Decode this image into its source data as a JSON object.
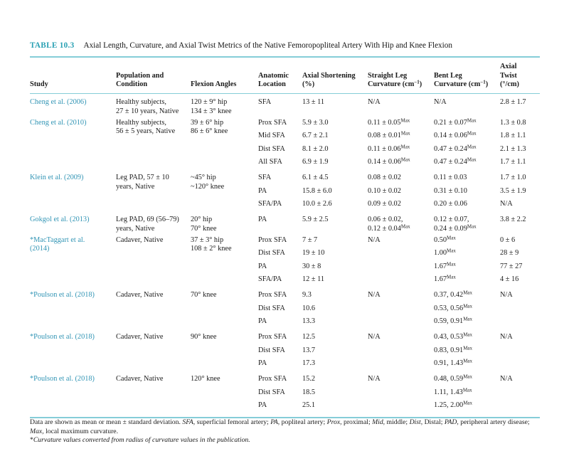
{
  "title": {
    "label": "TABLE 10.3",
    "text": "Axial Length, Curvature, and Axial Twist Metrics of the Native Femoropopliteal Artery With Hip and Knee Flexion"
  },
  "colors": {
    "accent_teal": "#28a0b3",
    "link_teal": "#3295b5",
    "rule_cyan": "#85cdd8",
    "text": "#1b1b1b"
  },
  "table": {
    "columns": [
      {
        "id": "study",
        "lines": [
          "Study"
        ]
      },
      {
        "id": "population",
        "lines": [
          "Population and",
          "Condition"
        ]
      },
      {
        "id": "flexion",
        "lines": [
          "Flexion Angles"
        ]
      },
      {
        "id": "location",
        "lines": [
          "Anatomic",
          "Location"
        ]
      },
      {
        "id": "shortening",
        "lines": [
          "Axial Shortening",
          "(%)"
        ]
      },
      {
        "id": "straight",
        "lines": [
          "Straight Leg",
          "Curvature (cm^−1^)"
        ]
      },
      {
        "id": "bent",
        "lines": [
          "Bent Leg",
          "Curvature (cm^−1^)"
        ]
      },
      {
        "id": "twist",
        "lines": [
          "Axial",
          "Twist",
          "(°/cm)"
        ]
      }
    ],
    "groups": [
      {
        "study": [
          "Cheng et al. (2006)"
        ],
        "population": [
          "Healthy subjects,",
          "27 ± 10 years, Native"
        ],
        "flexion": [
          "120 ± 9° hip",
          "134 ± 3° knee"
        ],
        "rows": [
          {
            "location": "SFA",
            "shortening": [
              "13 ± 11"
            ],
            "straight": [
              "N/A"
            ],
            "bent": [
              "N/A"
            ],
            "twist": [
              "2.8 ± 1.7"
            ]
          }
        ]
      },
      {
        "study": [
          "Cheng et al. (2010)"
        ],
        "population": [
          "Healthy subjects,",
          "56 ± 5 years, Native"
        ],
        "flexion": [
          "39 ± 6° hip",
          "86 ± 6° knee"
        ],
        "rows": [
          {
            "location": "Prox SFA",
            "shortening": [
              "5.9 ± 3.0"
            ],
            "straight": [
              "0.11 ± 0.05^Max"
            ],
            "bent": [
              "0.21 ± 0.07^Max"
            ],
            "twist": [
              "1.3 ± 0.8"
            ]
          },
          {
            "location": "Mid SFA",
            "shortening": [
              "6.7 ± 2.1"
            ],
            "straight": [
              "0.08 ± 0.01^Max"
            ],
            "bent": [
              "0.14 ± 0.06^Max"
            ],
            "twist": [
              "1.8 ± 1.1"
            ]
          },
          {
            "location": "Dist SFA",
            "shortening": [
              "8.1 ± 2.0"
            ],
            "straight": [
              "0.11 ± 0.06^Max"
            ],
            "bent": [
              "0.47 ± 0.24^Max"
            ],
            "twist": [
              "2.1 ± 1.3"
            ]
          },
          {
            "location": "All SFA",
            "shortening": [
              "6.9 ± 1.9"
            ],
            "straight": [
              "0.14 ± 0.06^Max"
            ],
            "bent": [
              "0.47 ± 0.24^Max"
            ],
            "twist": [
              "1.7 ± 1.1"
            ]
          }
        ]
      },
      {
        "study": [
          "Klein et al. (2009)"
        ],
        "population": [
          "Leg PAD, 57 ± 10",
          "years, Native"
        ],
        "flexion": [
          "~45° hip",
          "~120° knee"
        ],
        "rows": [
          {
            "location": "SFA",
            "shortening": [
              "6.1 ± 4.5"
            ],
            "straight": [
              "0.08 ± 0.02"
            ],
            "bent": [
              "0.11 ± 0.03"
            ],
            "twist": [
              "1.7 ± 1.0"
            ]
          },
          {
            "location": "PA",
            "shortening": [
              "15.8 ± 6.0"
            ],
            "straight": [
              "0.10 ± 0.02"
            ],
            "bent": [
              "0.31 ± 0.10"
            ],
            "twist": [
              "3.5 ± 1.9"
            ]
          },
          {
            "location": "SFA/PA",
            "shortening": [
              "10.0 ± 2.6"
            ],
            "straight": [
              "0.09 ± 0.02"
            ],
            "bent": [
              "0.20 ± 0.06"
            ],
            "twist": [
              "N/A"
            ]
          }
        ]
      },
      {
        "study": [
          "Gokgol et al. (2013)"
        ],
        "population": [
          "Leg PAD, 69 (56–79)",
          "years, Native"
        ],
        "flexion": [
          "20° hip",
          "70° knee"
        ],
        "rows": [
          {
            "location": "PA",
            "shortening": [
              "5.9 ± 2.5"
            ],
            "straight": [
              "0.06 ± 0.02,",
              "0.12 ± 0.04^Max"
            ],
            "bent": [
              "0.12 ± 0.07,",
              "0.24 ± 0.09^Max"
            ],
            "twist": [
              "3.8 ± 2.2"
            ]
          }
        ]
      },
      {
        "study": [
          "*MacTaggart et al.",
          "(2014)"
        ],
        "population": [
          "Cadaver, Native"
        ],
        "flexion": [
          "37 ± 3° hip",
          "108 ± 2° knee"
        ],
        "rows": [
          {
            "location": "Prox SFA",
            "shortening": [
              "7 ± 7"
            ],
            "straight": [
              "N/A"
            ],
            "bent": [
              "0.50^Max"
            ],
            "twist": [
              "0 ± 6"
            ]
          },
          {
            "location": "Dist SFA",
            "shortening": [
              "19 ± 10"
            ],
            "straight": [],
            "bent": [
              "1.00^Max"
            ],
            "twist": [
              "28 ± 9"
            ]
          },
          {
            "location": "PA",
            "shortening": [
              "30 ± 8"
            ],
            "straight": [],
            "bent": [
              "1.67^Max"
            ],
            "twist": [
              "77 ± 27"
            ]
          },
          {
            "location": "SFA/PA",
            "shortening": [
              "12 ± 11"
            ],
            "straight": [],
            "bent": [
              "1.67^Max"
            ],
            "twist": [
              "4 ± 16"
            ]
          }
        ]
      },
      {
        "study": [
          "*Poulson et al. (2018)"
        ],
        "population": [
          "Cadaver, Native"
        ],
        "flexion": [
          "70° knee"
        ],
        "rows": [
          {
            "location": "Prox SFA",
            "shortening": [
              "9.3"
            ],
            "straight": [
              "N/A"
            ],
            "bent": [
              "0.37, 0.42^Max"
            ],
            "twist": [
              "N/A"
            ]
          },
          {
            "location": "Dist SFA",
            "shortening": [
              "10.6"
            ],
            "straight": [],
            "bent": [
              "0.53, 0.56^Max"
            ],
            "twist": []
          },
          {
            "location": "PA",
            "shortening": [
              "13.3"
            ],
            "straight": [],
            "bent": [
              "0.59, 0.91^Max"
            ],
            "twist": []
          }
        ]
      },
      {
        "study": [
          "*Poulson et al. (2018)"
        ],
        "population": [
          "Cadaver, Native"
        ],
        "flexion": [
          "90° knee"
        ],
        "rows": [
          {
            "location": "Prox SFA",
            "shortening": [
              "12.5"
            ],
            "straight": [
              "N/A"
            ],
            "bent": [
              "0.43, 0.53^Max"
            ],
            "twist": [
              "N/A"
            ]
          },
          {
            "location": "Dist SFA",
            "shortening": [
              "13.7"
            ],
            "straight": [],
            "bent": [
              "0.83, 0.91^Max"
            ],
            "twist": []
          },
          {
            "location": "PA",
            "shortening": [
              "17.3"
            ],
            "straight": [],
            "bent": [
              "0.91, 1.43^Max"
            ],
            "twist": []
          }
        ]
      },
      {
        "study": [
          "*Poulson et al. (2018)"
        ],
        "population": [
          "Cadaver, Native"
        ],
        "flexion": [
          "120° knee"
        ],
        "rows": [
          {
            "location": "Prox SFA",
            "shortening": [
              "15.2"
            ],
            "straight": [
              "N/A"
            ],
            "bent": [
              "0.48, 0.59^Max"
            ],
            "twist": [
              "N/A"
            ]
          },
          {
            "location": "Dist SFA",
            "shortening": [
              "18.5"
            ],
            "straight": [],
            "bent": [
              "1.11, 1.43^Max"
            ],
            "twist": []
          },
          {
            "location": "PA",
            "shortening": [
              "25.1"
            ],
            "straight": [],
            "bent": [
              "1.25, 2.00^Max"
            ],
            "twist": []
          }
        ]
      }
    ]
  },
  "footer": {
    "note_segments": [
      {
        "t": "Data are shown as mean or mean ± standard deviation. "
      },
      {
        "t": "SFA,",
        "i": 1
      },
      {
        "t": " superficial femoral artery; "
      },
      {
        "t": "PA,",
        "i": 1
      },
      {
        "t": " popliteal artery; "
      },
      {
        "t": "Prox,",
        "i": 1
      },
      {
        "t": " proximal; "
      },
      {
        "t": "Mid,",
        "i": 1
      },
      {
        "t": " middle; "
      },
      {
        "t": "Dist,",
        "i": 1
      },
      {
        "t": " Distal; "
      },
      {
        "t": "PAD,",
        "i": 1
      },
      {
        "t": " peripheral artery disease; "
      },
      {
        "t": "Max,",
        "i": 1
      },
      {
        "t": " local maximum curvature."
      }
    ],
    "footnote_segments": [
      {
        "t": "*"
      },
      {
        "t": "Curvature values converted from radius of curvature values in the publication.",
        "i": 1
      }
    ]
  }
}
